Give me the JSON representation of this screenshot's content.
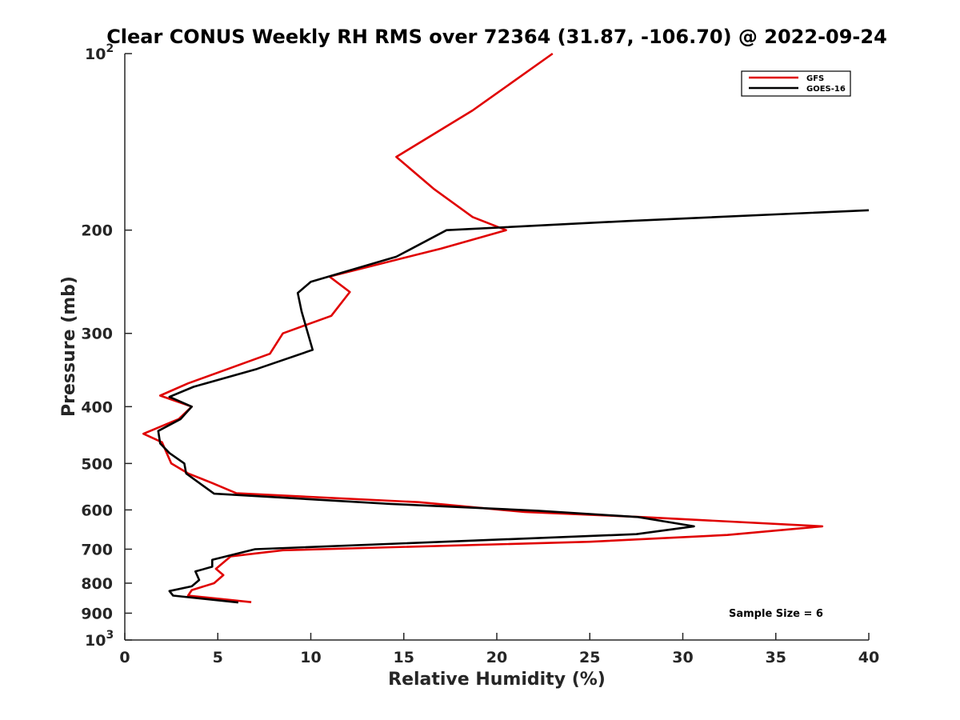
{
  "chart_data": {
    "type": "line",
    "title": "Clear CONUS Weekly RH RMS over 72364 (31.87, -106.70) @ 2022-09-24",
    "xlabel": "Relative Humidity (%)",
    "ylabel": "Pressure (mb)",
    "xlim": [
      0,
      40
    ],
    "ylim": [
      100,
      1000
    ],
    "y_scale": "log",
    "y_reversed": true,
    "grid": false,
    "legend_position": "top-right",
    "annotation": "Sample Size = 6",
    "x_ticks": [
      "0",
      "5",
      "10",
      "15",
      "20",
      "25",
      "30",
      "35",
      "40"
    ],
    "y_ticks": [
      {
        "value": 100,
        "base": "10",
        "exp": "2"
      },
      {
        "value": 200,
        "base": "200",
        "exp": ""
      },
      {
        "value": 300,
        "base": "300",
        "exp": ""
      },
      {
        "value": 400,
        "base": "400",
        "exp": ""
      },
      {
        "value": 500,
        "base": "500",
        "exp": ""
      },
      {
        "value": 600,
        "base": "600",
        "exp": ""
      },
      {
        "value": 700,
        "base": "700",
        "exp": ""
      },
      {
        "value": 800,
        "base": "800",
        "exp": ""
      },
      {
        "value": 900,
        "base": "900",
        "exp": ""
      },
      {
        "value": 1000,
        "base": "10",
        "exp": "3"
      }
    ],
    "series": [
      {
        "name": "GFS",
        "color": "#e00000",
        "x": [
          23.0,
          18.7,
          14.6,
          16.6,
          18.7,
          20.5,
          17.0,
          11.0,
          12.1,
          11.1,
          8.5,
          7.8,
          3.4,
          1.9,
          3.6,
          2.9,
          1.0,
          2.0,
          2.5,
          3.4,
          4.7,
          6.0,
          15.8,
          21.5,
          27.8,
          37.5,
          32.4,
          25.0,
          8.5,
          5.7,
          4.9,
          5.3,
          4.8,
          3.6,
          3.4,
          6.8
        ],
        "y": [
          100,
          125,
          150,
          170,
          190,
          200,
          215,
          240,
          255,
          280,
          300,
          325,
          365,
          383,
          400,
          420,
          445,
          460,
          500,
          520,
          540,
          562,
          582,
          605,
          617,
          640,
          662,
          680,
          703,
          720,
          756,
          775,
          800,
          822,
          840,
          862
        ]
      },
      {
        "name": "GOES-16",
        "color": "#000000",
        "x": [
          40.0,
          27.0,
          17.3,
          14.6,
          10.0,
          9.3,
          9.5,
          10.1,
          7.1,
          3.7,
          2.4,
          3.6,
          3.0,
          1.8,
          1.9,
          2.4,
          3.2,
          3.3,
          4.8,
          14.3,
          22.2,
          27.6,
          30.6,
          27.5,
          7.0,
          4.7,
          4.7,
          3.8,
          4.0,
          3.6,
          2.4,
          2.6,
          6.1
        ],
        "y": [
          185,
          193,
          200,
          222,
          245,
          256,
          275,
          320,
          345,
          370,
          385,
          400,
          420,
          440,
          462,
          480,
          500,
          520,
          563,
          586,
          602,
          617,
          640,
          660,
          700,
          730,
          750,
          764,
          790,
          810,
          825,
          840,
          863
        ]
      }
    ]
  }
}
